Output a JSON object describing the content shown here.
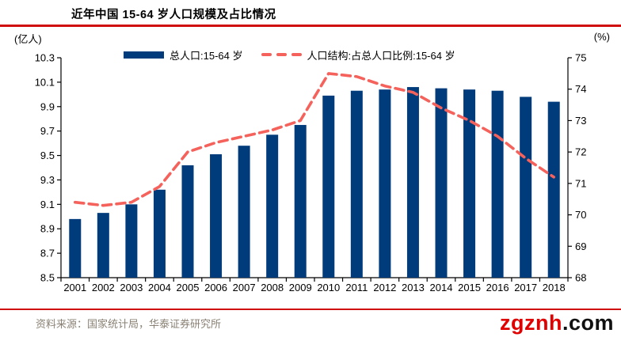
{
  "header": {
    "title": "近年中国 15-64 岁人口规模及占比情况"
  },
  "legend": {
    "bar_label": "总人口:15-64 岁",
    "line_label": "人口结构:占总人口比例:15-64 岁"
  },
  "footer": {
    "source": "资料来源：国家统计局，华泰证券研究所",
    "watermark_red": "zgznh",
    "watermark_suffix": ".com"
  },
  "colors": {
    "bar": "#003b7c",
    "line": "#f5625c",
    "rule_red": "#cf0d0d",
    "watermark_red": "#e00000",
    "watermark_dark": "#111111",
    "source_text": "#8a8174",
    "axis": "#000000"
  },
  "chart_data": {
    "type": "bar+line",
    "title": "近年中国 15-64 岁人口规模及占比情况",
    "categories": [
      "2001",
      "2002",
      "2003",
      "2004",
      "2005",
      "2006",
      "2007",
      "2008",
      "2009",
      "2010",
      "2011",
      "2012",
      "2013",
      "2014",
      "2015",
      "2016",
      "2017",
      "2018"
    ],
    "series": [
      {
        "name": "总人口:15-64 岁",
        "type": "bar",
        "axis": "left",
        "unit": "亿人",
        "color": "#003b7c",
        "values": [
          8.98,
          9.03,
          9.1,
          9.22,
          9.42,
          9.51,
          9.58,
          9.67,
          9.75,
          9.99,
          10.03,
          10.04,
          10.06,
          10.05,
          10.04,
          10.03,
          9.98,
          9.94
        ]
      },
      {
        "name": "人口结构:占总人口比例:15-64 岁",
        "type": "line",
        "style": "dashed",
        "axis": "right",
        "unit": "%",
        "color": "#f5625c",
        "values": [
          70.4,
          70.3,
          70.4,
          70.9,
          72.0,
          72.3,
          72.5,
          72.7,
          73.0,
          74.5,
          74.4,
          74.1,
          73.9,
          73.4,
          73.0,
          72.5,
          71.8,
          71.2
        ]
      }
    ],
    "left_axis": {
      "unit_label": "(亿人)",
      "min": 8.5,
      "max": 10.3,
      "step": 0.2
    },
    "right_axis": {
      "unit_label": "(%)",
      "min": 68,
      "max": 75,
      "step": 1
    },
    "grid": false,
    "legend_position": "top"
  }
}
